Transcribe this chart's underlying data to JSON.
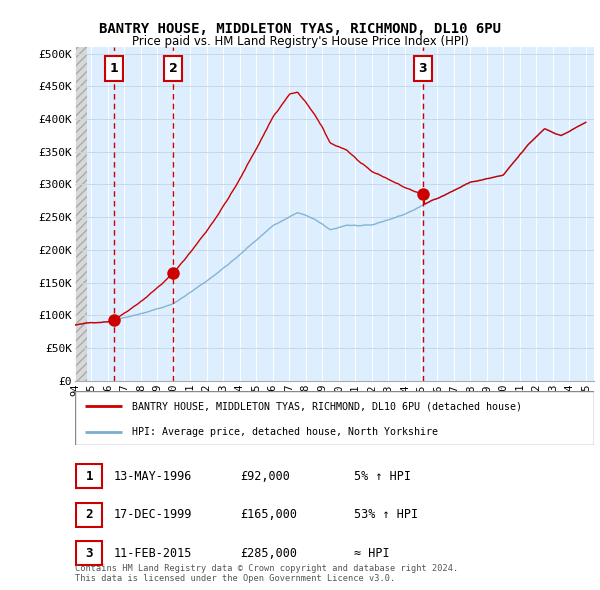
{
  "title": "BANTRY HOUSE, MIDDLETON TYAS, RICHMOND, DL10 6PU",
  "subtitle": "Price paid vs. HM Land Registry's House Price Index (HPI)",
  "xlim": [
    1994.0,
    2025.5
  ],
  "ylim": [
    0,
    510000
  ],
  "yticks": [
    0,
    50000,
    100000,
    150000,
    200000,
    250000,
    300000,
    350000,
    400000,
    450000,
    500000
  ],
  "ytick_labels": [
    "£0",
    "£50K",
    "£100K",
    "£150K",
    "£200K",
    "£250K",
    "£300K",
    "£350K",
    "£400K",
    "£450K",
    "£500K"
  ],
  "sale_dates": [
    1996.36,
    1999.96,
    2015.11
  ],
  "sale_prices": [
    92000,
    165000,
    285000
  ],
  "sale_labels": [
    "1",
    "2",
    "3"
  ],
  "legend_line1": "BANTRY HOUSE, MIDDLETON TYAS, RICHMOND, DL10 6PU (detached house)",
  "legend_line2": "HPI: Average price, detached house, North Yorkshire",
  "table_rows": [
    [
      "1",
      "13-MAY-1996",
      "£92,000",
      "5% ↑ HPI"
    ],
    [
      "2",
      "17-DEC-1999",
      "£165,000",
      "53% ↑ HPI"
    ],
    [
      "3",
      "11-FEB-2015",
      "£285,000",
      "≈ HPI"
    ]
  ],
  "footer": "Contains HM Land Registry data © Crown copyright and database right 2024.\nThis data is licensed under the Open Government Licence v3.0.",
  "red_color": "#cc0000",
  "blue_color": "#7aadcf",
  "bg_color": "#ddeeff",
  "hatch_color": "#c8c8c8"
}
